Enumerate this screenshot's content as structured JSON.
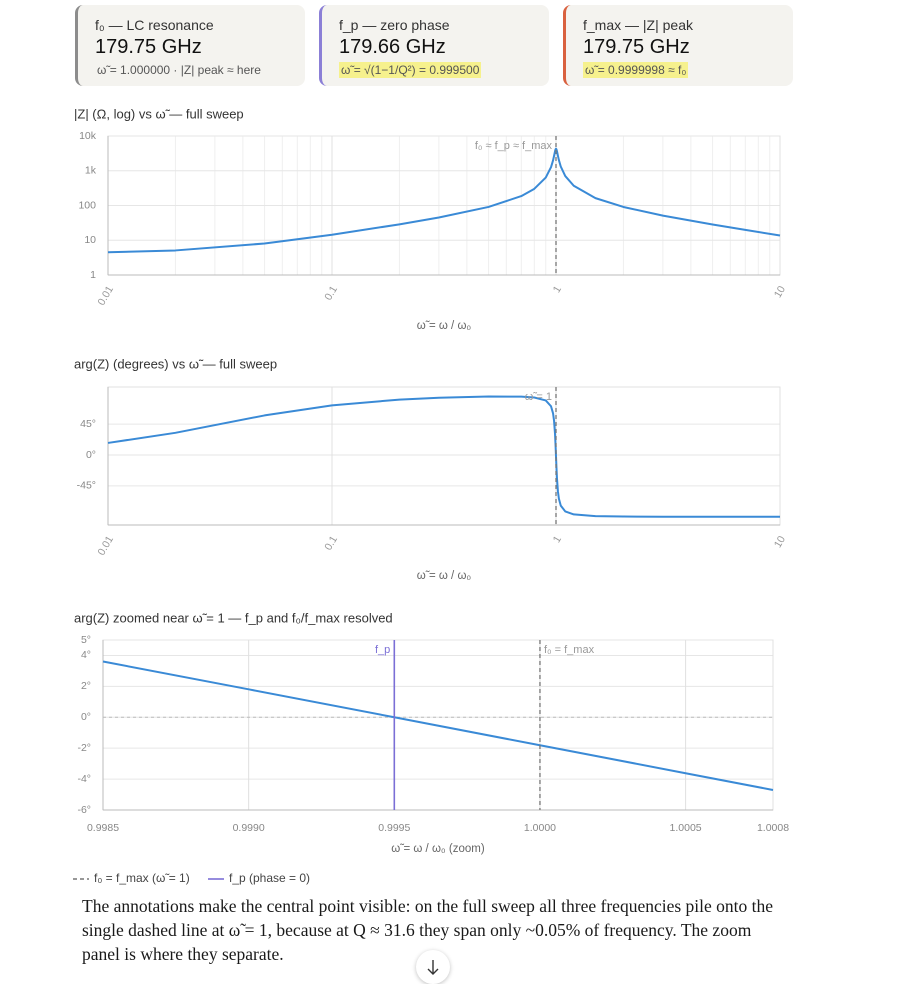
{
  "cards": [
    {
      "title": "f₀ — LC resonance",
      "value": "179.75 GHz",
      "note": "ω̃ = 1.000000 · |Z| peak ≈ here",
      "accent": "#8c8c8c",
      "highlight": false
    },
    {
      "title": "f_p — zero phase",
      "value": "179.66 GHz",
      "note": "ω̃ = √(1−1/Q²) = 0.999500",
      "accent": "#8b7fd6",
      "highlight": true
    },
    {
      "title": "f_max — |Z| peak",
      "value": "179.75 GHz",
      "note": "ω̃ = 0.9999998 ≈ f₀",
      "accent": "#d9613f",
      "highlight": true
    }
  ],
  "chart_data": [
    {
      "type": "line",
      "title": "|Z| (Ω, log) vs ω̃ — full sweep",
      "x_label": "ω̃ = ω / ω₀",
      "color": "#3a8ad6",
      "xlog": true,
      "ylog": true,
      "grid": true,
      "xlim": [
        0.01,
        10
      ],
      "ylim": [
        1,
        10000
      ],
      "xticks": [
        0.01,
        0.1,
        1,
        10
      ],
      "yticks": [
        1,
        10,
        100,
        {
          "value": 1000,
          "label": "1k"
        },
        {
          "value": 10000,
          "label": "10k"
        }
      ],
      "x_minor_grid": [
        0.02,
        0.03,
        0.04,
        0.05,
        0.06,
        0.07,
        0.08,
        0.09,
        0.2,
        0.3,
        0.4,
        0.5,
        0.6,
        0.7,
        0.8,
        0.9,
        2,
        3,
        4,
        5,
        6,
        7,
        8,
        9
      ],
      "x": [
        0.01,
        0.02,
        0.05,
        0.1,
        0.2,
        0.3,
        0.5,
        0.7,
        0.8,
        0.9,
        0.95,
        0.97,
        0.98,
        0.99,
        0.995,
        1,
        1.005,
        1.01,
        1.02,
        1.03,
        1.05,
        1.1,
        1.2,
        1.5,
        2,
        3,
        5,
        7,
        10
      ],
      "values": [
        4.51,
        5.09,
        8.07,
        14.41,
        28.68,
        45.09,
        90.83,
        186.7,
        301.7,
        637.6,
        1267,
        1982,
        2652,
        3631,
        4100,
        4303,
        4102,
        3641,
        2685,
        2029,
        1326,
        703.1,
        369.8,
        163.1,
        90.65,
        51.0,
        28.33,
        19.83,
        13.74
      ],
      "markers": [
        {
          "x": 1,
          "label": "f₀ ≈ f_p ≈ f_max",
          "color": "#777777",
          "dashed": true
        }
      ]
    },
    {
      "type": "line",
      "title": "arg(Z) (degrees) vs ω̃ — full sweep",
      "x_label": "ω̃ = ω / ω₀",
      "color": "#3a8ad6",
      "xlog": true,
      "ylog": false,
      "grid": true,
      "xlim": [
        0.01,
        10
      ],
      "ylim": [
        -102,
        99
      ],
      "xticks": [
        0.01,
        0.1,
        1,
        10
      ],
      "yticks": [
        {
          "value": 45,
          "label": "45°"
        },
        {
          "value": 0,
          "label": "0°"
        },
        {
          "value": -45,
          "label": "-45°"
        }
      ],
      "x": [
        0.01,
        0.02,
        0.05,
        0.1,
        0.2,
        0.3,
        0.5,
        0.7,
        0.8,
        0.9,
        0.95,
        0.97,
        0.98,
        0.99,
        0.995,
        1,
        1.005,
        1.01,
        1.02,
        1.03,
        1.05,
        1.1,
        1.2,
        1.5,
        2,
        3,
        5,
        7,
        10
      ],
      "values": [
        17.53,
        32.28,
        57.6,
        72.27,
        80.64,
        83.39,
        85.17,
        84.93,
        83.72,
        79.47,
        70.97,
        60.7,
        50.1,
        30.62,
        15.77,
        -1.81,
        -19.31,
        -33.97,
        -53.18,
        -63.62,
        -73.77,
        -82.25,
        -86.58,
        -89.04,
        -89.7,
        -89.92,
        -89.98,
        -89.99,
        -90.0
      ],
      "markers": [
        {
          "x": 1,
          "label": "ω̃ = 1",
          "color": "#777777",
          "dashed": true
        }
      ]
    },
    {
      "type": "line",
      "title": "arg(Z) zoomed near ω̃ = 1 — f_p and f₀/f_max resolved",
      "x_label": "ω̃ = ω / ω₀  (zoom)",
      "color": "#3a8ad6",
      "xlog": false,
      "ylog": false,
      "grid": true,
      "xlim": [
        0.9985,
        1.0008
      ],
      "ylim": [
        -6,
        5
      ],
      "xticks": [
        0.9985,
        {
          "value": 0.999,
          "label": "0.9990"
        },
        0.9995,
        {
          "value": 1,
          "label": "1.0000"
        },
        1.0005,
        1.0008
      ],
      "yticks": [
        {
          "value": 5,
          "label": "5°"
        },
        {
          "value": 4,
          "label": "4°"
        },
        {
          "value": 2,
          "label": "2°"
        },
        {
          "value": 0,
          "label": "0°"
        },
        {
          "value": -2,
          "label": "-2°"
        },
        {
          "value": -4,
          "label": "-4°"
        },
        {
          "value": -6,
          "label": "-6°"
        }
      ],
      "x": [
        0.9985,
        0.999,
        0.9995,
        1,
        1.0005,
        1.0008
      ],
      "values": [
        3.609,
        1.808,
        0,
        -1.811,
        -3.621,
        -4.705
      ],
      "markers": [
        {
          "x": 0.9995,
          "label": "f_p",
          "color": "#7b6fd6",
          "dashed": false
        },
        {
          "x": 1,
          "label": "f₀ = f_max",
          "color": "#777777",
          "dashed": true
        }
      ],
      "hlines": [
        {
          "y": 0,
          "color": "#bbbbbb"
        }
      ],
      "legend": [
        {
          "label": "f₀ = f_max (ω̃ = 1)",
          "color": "#777777",
          "dashed": true
        },
        {
          "label": "f_p (phase = 0)",
          "color": "#7b6fd6",
          "dashed": false
        }
      ]
    }
  ],
  "paragraph": "The annotations make the central point visible: on the full sweep all three frequencies pile onto the single dashed line at ω̃ = 1, because at Q ≈ 31.6 they span only ~0.05% of frequency. The zoom panel is where they separate."
}
